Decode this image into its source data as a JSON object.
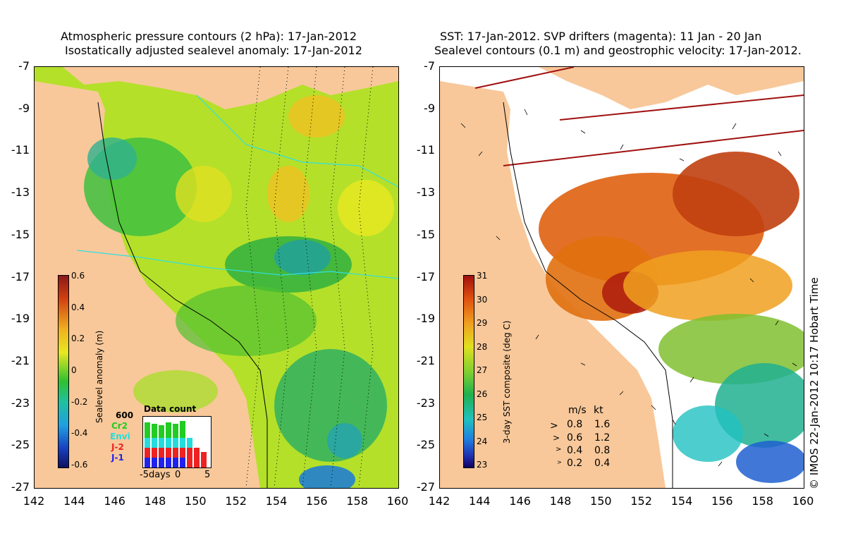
{
  "left_panel": {
    "title_line1": "Atmospheric pressure contours (2 hPa): 17-Jan-2012",
    "title_line2": "Isostatically adjusted sealevel anomaly: 17-Jan-2012",
    "colorbar": {
      "label": "Sealevel anomaly (m)",
      "ticks": [
        "0.6",
        "0.4",
        "0.2",
        "0",
        "-0.2",
        "-0.4",
        "-0.6"
      ]
    },
    "data_count": {
      "title": "Data count",
      "max_label": "600",
      "x_labels": [
        "-5days",
        "0",
        "5"
      ],
      "satellites": [
        {
          "name": "Cr2",
          "color": "#22cc22"
        },
        {
          "name": "Envi",
          "color": "#22dddd"
        },
        {
          "name": "J-2",
          "color": "#ee2222"
        },
        {
          "name": "J-1",
          "color": "#2222ee"
        }
      ]
    }
  },
  "right_panel": {
    "title_line1": "SST: 17-Jan-2012. SVP drifters (magenta): 11 Jan - 20 Jan",
    "title_line2": "Sealevel contours (0.1 m) and geostrophic velocity: 17-Jan-2012.",
    "colorbar": {
      "label": "3-day SST composite (deg C)",
      "ticks": [
        "31",
        "30",
        "29",
        "28",
        "27",
        "26",
        "25",
        "24",
        "23"
      ]
    },
    "velocity_legend": {
      "header_ms": "m/s",
      "header_kt": "kt",
      "rows": [
        {
          "ms": "0.8",
          "kt": "1.6"
        },
        {
          "ms": "0.6",
          "kt": "1.2"
        },
        {
          "ms": "0.4",
          "kt": "0.8"
        },
        {
          "ms": "0.2",
          "kt": "0.4"
        }
      ]
    }
  },
  "axes": {
    "lat_labels": [
      "-7",
      "-9",
      "-11",
      "-13",
      "-15",
      "-17",
      "-19",
      "-21",
      "-23",
      "-25",
      "-27"
    ],
    "lon_labels": [
      "142",
      "144",
      "146",
      "148",
      "150",
      "152",
      "154",
      "156",
      "158",
      "160"
    ]
  },
  "copyright": "© IMOS 22-Jan-2012 10:17 Hobart Time",
  "colors": {
    "land": "#f8c89a",
    "sla_ramp": [
      "#8b1a1a",
      "#e8601c",
      "#f0b020",
      "#e8e820",
      "#a8e020",
      "#30c030",
      "#20c0a0",
      "#20a0e0",
      "#1840c0",
      "#101060"
    ],
    "sst_ramp": [
      "#a01010",
      "#e05010",
      "#f0a020",
      "#e0e020",
      "#80d030",
      "#20b050",
      "#20c0c0",
      "#2080e0",
      "#2030b0",
      "#100060"
    ]
  }
}
